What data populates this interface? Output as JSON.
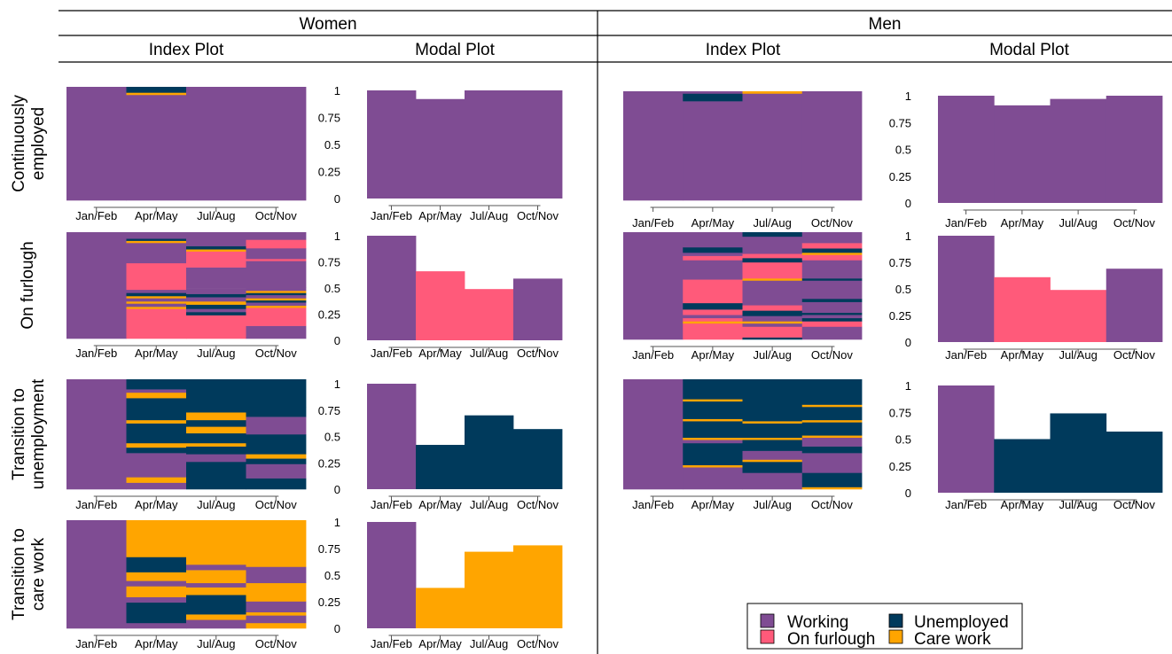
{
  "headers": {
    "groups": [
      "Women",
      "Men"
    ],
    "subheads": [
      "Index Plot",
      "Modal Plot",
      "Index Plot",
      "Modal Plot"
    ]
  },
  "colors": {
    "Working": "#7f4c93",
    "On furlough": "#ff5a7a",
    "Unemployed": "#003a5c",
    "Care work": "#ffa500"
  },
  "legend": {
    "items": [
      {
        "label": "Working",
        "state": "Working"
      },
      {
        "label": "Unemployed",
        "state": "Unemployed"
      },
      {
        "label": "On furlough",
        "state": "On furlough"
      },
      {
        "label": "Care work",
        "state": "Care work"
      }
    ]
  },
  "chart_data": {
    "type": "bar",
    "description_type": "index plots and modal plots of employment sequences",
    "periods": [
      "Jan/Feb",
      "Apr/May",
      "Jul/Aug",
      "Oct/Nov"
    ],
    "yticks": [
      0,
      0.25,
      0.5,
      0.75,
      1
    ],
    "ytick_labels": [
      "0",
      "0.25",
      "0.5",
      "0.75",
      "1"
    ],
    "ylim": [
      0,
      1
    ],
    "row_labels": [
      [
        "Continuously",
        "employed"
      ],
      [
        "On furlough"
      ],
      [
        "Transition to",
        "unemployment"
      ],
      [
        "Transition to",
        "care work"
      ]
    ],
    "rows": [
      {
        "women": {
          "index": [
            [
              [
                1,
                "Working"
              ]
            ],
            [
              [
                0.93,
                "Working"
              ],
              [
                0.02,
                "Care work"
              ],
              [
                0.05,
                "Unemployed"
              ]
            ],
            [
              [
                1,
                "Working"
              ]
            ],
            [
              [
                1,
                "Working"
              ]
            ]
          ],
          "modal": {
            "values": [
              1.0,
              0.92,
              1.0,
              1.0
            ],
            "states": [
              "Working",
              "Working",
              "Working",
              "Working"
            ]
          }
        },
        "men": {
          "index": [
            [
              [
                1,
                "Working"
              ]
            ],
            [
              [
                0.91,
                "Working"
              ],
              [
                0.07,
                "Unemployed"
              ],
              [
                0.02,
                "Working"
              ]
            ],
            [
              [
                0.98,
                "Working"
              ],
              [
                0.02,
                "Care work"
              ]
            ],
            [
              [
                1,
                "Working"
              ]
            ]
          ],
          "modal": {
            "values": [
              1.0,
              0.91,
              0.97,
              1.0
            ],
            "states": [
              "Working",
              "Working",
              "Working",
              "Working"
            ]
          }
        }
      },
      {
        "women": {
          "index": [
            [
              [
                1,
                "Working"
              ]
            ],
            [
              [
                0.28,
                "On furlough"
              ],
              [
                0.02,
                "Care work"
              ],
              [
                0.03,
                "Working"
              ],
              [
                0.02,
                "Care work"
              ],
              [
                0.03,
                "Working"
              ],
              [
                0.02,
                "Care work"
              ],
              [
                0.03,
                "Unemployed"
              ],
              [
                0.03,
                "Working"
              ],
              [
                0.25,
                "On furlough"
              ],
              [
                0.19,
                "Working"
              ],
              [
                0.02,
                "Care work"
              ],
              [
                0.02,
                "Unemployed"
              ],
              [
                0.06,
                "Working"
              ]
            ],
            [
              [
                0.22,
                "On furlough"
              ],
              [
                0.03,
                "Unemployed"
              ],
              [
                0.03,
                "Working"
              ],
              [
                0.04,
                "Unemployed"
              ],
              [
                0.03,
                "Care work"
              ],
              [
                0.04,
                "Working"
              ],
              [
                0.03,
                "Unemployed"
              ],
              [
                0.05,
                "Working"
              ],
              [
                0.2,
                "Working"
              ],
              [
                0.15,
                "On furlough"
              ],
              [
                0.02,
                "Care work"
              ],
              [
                0.03,
                "Unemployed"
              ],
              [
                0.13,
                "Working"
              ]
            ],
            [
              [
                0.12,
                "Working"
              ],
              [
                0.17,
                "On furlough"
              ],
              [
                0.02,
                "Care work"
              ],
              [
                0.03,
                "Working"
              ],
              [
                0.02,
                "Unemployed"
              ],
              [
                0.02,
                "Care work"
              ],
              [
                0.03,
                "Working"
              ],
              [
                0.02,
                "Unemployed"
              ],
              [
                0.02,
                "Care work"
              ],
              [
                0.03,
                "Working"
              ],
              [
                0.25,
                "Working"
              ],
              [
                0.02,
                "On furlough"
              ],
              [
                0.1,
                "Working"
              ],
              [
                0.08,
                "On furlough"
              ],
              [
                0.07,
                "Working"
              ]
            ]
          ],
          "modal": {
            "values": [
              1.0,
              0.66,
              0.49,
              0.59
            ],
            "states": [
              "Working",
              "On furlough",
              "On furlough",
              "Working"
            ]
          }
        },
        "men": {
          "index": [
            [
              [
                1,
                "Working"
              ]
            ],
            [
              [
                0.15,
                "On furlough"
              ],
              [
                0.02,
                "Care work"
              ],
              [
                0.03,
                "On furlough"
              ],
              [
                0.03,
                "Working"
              ],
              [
                0.05,
                "On furlough"
              ],
              [
                0.06,
                "Unemployed"
              ],
              [
                0.22,
                "On furlough"
              ],
              [
                0.18,
                "Working"
              ],
              [
                0.04,
                "On furlough"
              ],
              [
                0.03,
                "Working"
              ],
              [
                0.05,
                "Unemployed"
              ],
              [
                0.14,
                "Working"
              ]
            ],
            [
              [
                0.02,
                "Unemployed"
              ],
              [
                0.1,
                "On furlough"
              ],
              [
                0.03,
                "Working"
              ],
              [
                0.02,
                "Care work"
              ],
              [
                0.05,
                "Working"
              ],
              [
                0.05,
                "Unemployed"
              ],
              [
                0.05,
                "On furlough"
              ],
              [
                0.23,
                "Working"
              ],
              [
                0.02,
                "Care work"
              ],
              [
                0.15,
                "On furlough"
              ],
              [
                0.04,
                "Unemployed"
              ],
              [
                0.04,
                "On furlough"
              ],
              [
                0.16,
                "Working"
              ],
              [
                0.04,
                "Unemployed"
              ]
            ],
            [
              [
                0.12,
                "Working"
              ],
              [
                0.05,
                "On furlough"
              ],
              [
                0.03,
                "Unemployed"
              ],
              [
                0.03,
                "Working"
              ],
              [
                0.02,
                "Unemployed"
              ],
              [
                0.1,
                "Working"
              ],
              [
                0.03,
                "Unemployed"
              ],
              [
                0.17,
                "Working"
              ],
              [
                0.02,
                "Unemployed"
              ],
              [
                0.17,
                "Working"
              ],
              [
                0.05,
                "On furlough"
              ],
              [
                0.02,
                "Care work"
              ],
              [
                0.04,
                "Unemployed"
              ],
              [
                0.05,
                "On furlough"
              ],
              [
                0.1,
                "Working"
              ]
            ]
          ],
          "modal": {
            "values": [
              1.0,
              0.61,
              0.49,
              0.69
            ],
            "states": [
              "Working",
              "On furlough",
              "On furlough",
              "Working"
            ]
          }
        }
      },
      {
        "women": {
          "index": [
            [
              [
                1,
                "Working"
              ]
            ],
            [
              [
                0.06,
                "Working"
              ],
              [
                0.05,
                "Care work"
              ],
              [
                0.22,
                "Working"
              ],
              [
                0.05,
                "Unemployed"
              ],
              [
                0.04,
                "Care work"
              ],
              [
                0.18,
                "Unemployed"
              ],
              [
                0.03,
                "Care work"
              ],
              [
                0.2,
                "Unemployed"
              ],
              [
                0.05,
                "Care work"
              ],
              [
                0.03,
                "Working"
              ],
              [
                0.09,
                "Unemployed"
              ]
            ],
            [
              [
                0.25,
                "Unemployed"
              ],
              [
                0.07,
                "Working"
              ],
              [
                0.07,
                "Unemployed"
              ],
              [
                0.03,
                "Care work"
              ],
              [
                0.09,
                "Unemployed"
              ],
              [
                0.06,
                "Care work"
              ],
              [
                0.06,
                "Unemployed"
              ],
              [
                0.07,
                "Care work"
              ],
              [
                0.3,
                "Unemployed"
              ]
            ],
            [
              [
                0.1,
                "Unemployed"
              ],
              [
                0.13,
                "Working"
              ],
              [
                0.05,
                "Unemployed"
              ],
              [
                0.04,
                "Care work"
              ],
              [
                0.18,
                "Unemployed"
              ],
              [
                0.16,
                "Working"
              ],
              [
                0.09,
                "Unemployed"
              ],
              [
                0.25,
                "Unemployed"
              ]
            ]
          ],
          "modal": {
            "values": [
              1.0,
              0.42,
              0.7,
              0.57
            ],
            "states": [
              "Working",
              "Unemployed",
              "Unemployed",
              "Unemployed"
            ]
          }
        },
        "men": {
          "index": [
            [
              [
                1,
                "Working"
              ]
            ],
            [
              [
                0.2,
                "Working"
              ],
              [
                0.02,
                "Care work"
              ],
              [
                0.2,
                "Unemployed"
              ],
              [
                0.03,
                "Working"
              ],
              [
                0.02,
                "Care work"
              ],
              [
                0.15,
                "Unemployed"
              ],
              [
                0.02,
                "Care work"
              ],
              [
                0.16,
                "Unemployed"
              ],
              [
                0.02,
                "Care work"
              ],
              [
                0.18,
                "Unemployed"
              ]
            ],
            [
              [
                0.15,
                "Working"
              ],
              [
                0.1,
                "Unemployed"
              ],
              [
                0.02,
                "Care work"
              ],
              [
                0.08,
                "Working"
              ],
              [
                0.1,
                "Unemployed"
              ],
              [
                0.02,
                "Care work"
              ],
              [
                0.13,
                "Unemployed"
              ],
              [
                0.02,
                "Care work"
              ],
              [
                0.38,
                "Unemployed"
              ]
            ],
            [
              [
                0.02,
                "Care work"
              ],
              [
                0.13,
                "Unemployed"
              ],
              [
                0.18,
                "Working"
              ],
              [
                0.06,
                "Unemployed"
              ],
              [
                0.08,
                "Working"
              ],
              [
                0.02,
                "Care work"
              ],
              [
                0.12,
                "Unemployed"
              ],
              [
                0.02,
                "Care work"
              ],
              [
                0.12,
                "Unemployed"
              ],
              [
                0.02,
                "Care work"
              ],
              [
                0.23,
                "Unemployed"
              ]
            ]
          ],
          "modal": {
            "values": [
              1.0,
              0.5,
              0.74,
              0.57
            ],
            "states": [
              "Working",
              "Unemployed",
              "Unemployed",
              "Unemployed"
            ]
          }
        }
      },
      {
        "women": {
          "index": [
            [
              [
                1,
                "Working"
              ]
            ],
            [
              [
                0.05,
                "Working"
              ],
              [
                0.19,
                "Unemployed"
              ],
              [
                0.05,
                "Working"
              ],
              [
                0.1,
                "Care work"
              ],
              [
                0.05,
                "Working"
              ],
              [
                0.08,
                "Care work"
              ],
              [
                0.14,
                "Unemployed"
              ],
              [
                0.34,
                "Care work"
              ]
            ],
            [
              [
                0.08,
                "Working"
              ],
              [
                0.05,
                "Care work"
              ],
              [
                0.18,
                "Unemployed"
              ],
              [
                0.07,
                "Care work"
              ],
              [
                0.04,
                "Working"
              ],
              [
                0.12,
                "Care work"
              ],
              [
                0.05,
                "Working"
              ],
              [
                0.41,
                "Care work"
              ]
            ],
            [
              [
                0.05,
                "Care work"
              ],
              [
                0.07,
                "Working"
              ],
              [
                0.03,
                "Care work"
              ],
              [
                0.1,
                "Working"
              ],
              [
                0.17,
                "Care work"
              ],
              [
                0.15,
                "Working"
              ],
              [
                0.43,
                "Care work"
              ]
            ]
          ],
          "modal": {
            "values": [
              1.0,
              0.38,
              0.72,
              0.78
            ],
            "states": [
              "Working",
              "Care work",
              "Care work",
              "Care work"
            ]
          }
        }
      }
    ]
  }
}
